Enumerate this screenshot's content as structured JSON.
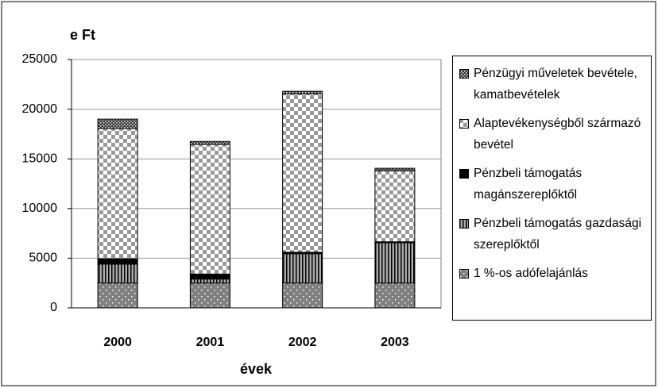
{
  "chart_data": {
    "type": "stacked-bar",
    "y_axis_title": "e Ft",
    "x_axis_title": "évek",
    "categories": [
      "2000",
      "2001",
      "2002",
      "2003"
    ],
    "series": [
      {
        "name": "1 %-os adófelajánlás",
        "color": "#808080",
        "pattern": "dots",
        "values": [
          2500,
          2500,
          2500,
          2500
        ]
      },
      {
        "name": "Pénzbeli támogatás gazdasági szereplőktől",
        "color": "#808080",
        "pattern": "vstripes",
        "values": [
          1900,
          400,
          2950,
          4050
        ]
      },
      {
        "name": "Pénzbeli támogatás magánszereplőktől",
        "color": "#000000",
        "pattern": "solid",
        "values": [
          550,
          500,
          150,
          100
        ]
      },
      {
        "name": "Alaptevékenységből származó bevétel",
        "color": "#999999",
        "pattern": "checker",
        "values": [
          13100,
          13050,
          15950,
          7150
        ]
      },
      {
        "name": "Pénzügyi műveletek bevétele, kamatbevételek",
        "color": "#404040",
        "pattern": "dots-dark",
        "values": [
          950,
          300,
          250,
          250
        ]
      }
    ],
    "ylim": [
      0,
      25000
    ],
    "yticks": [
      0,
      5000,
      10000,
      15000,
      20000,
      25000
    ],
    "grid": true,
    "legend": "right"
  }
}
